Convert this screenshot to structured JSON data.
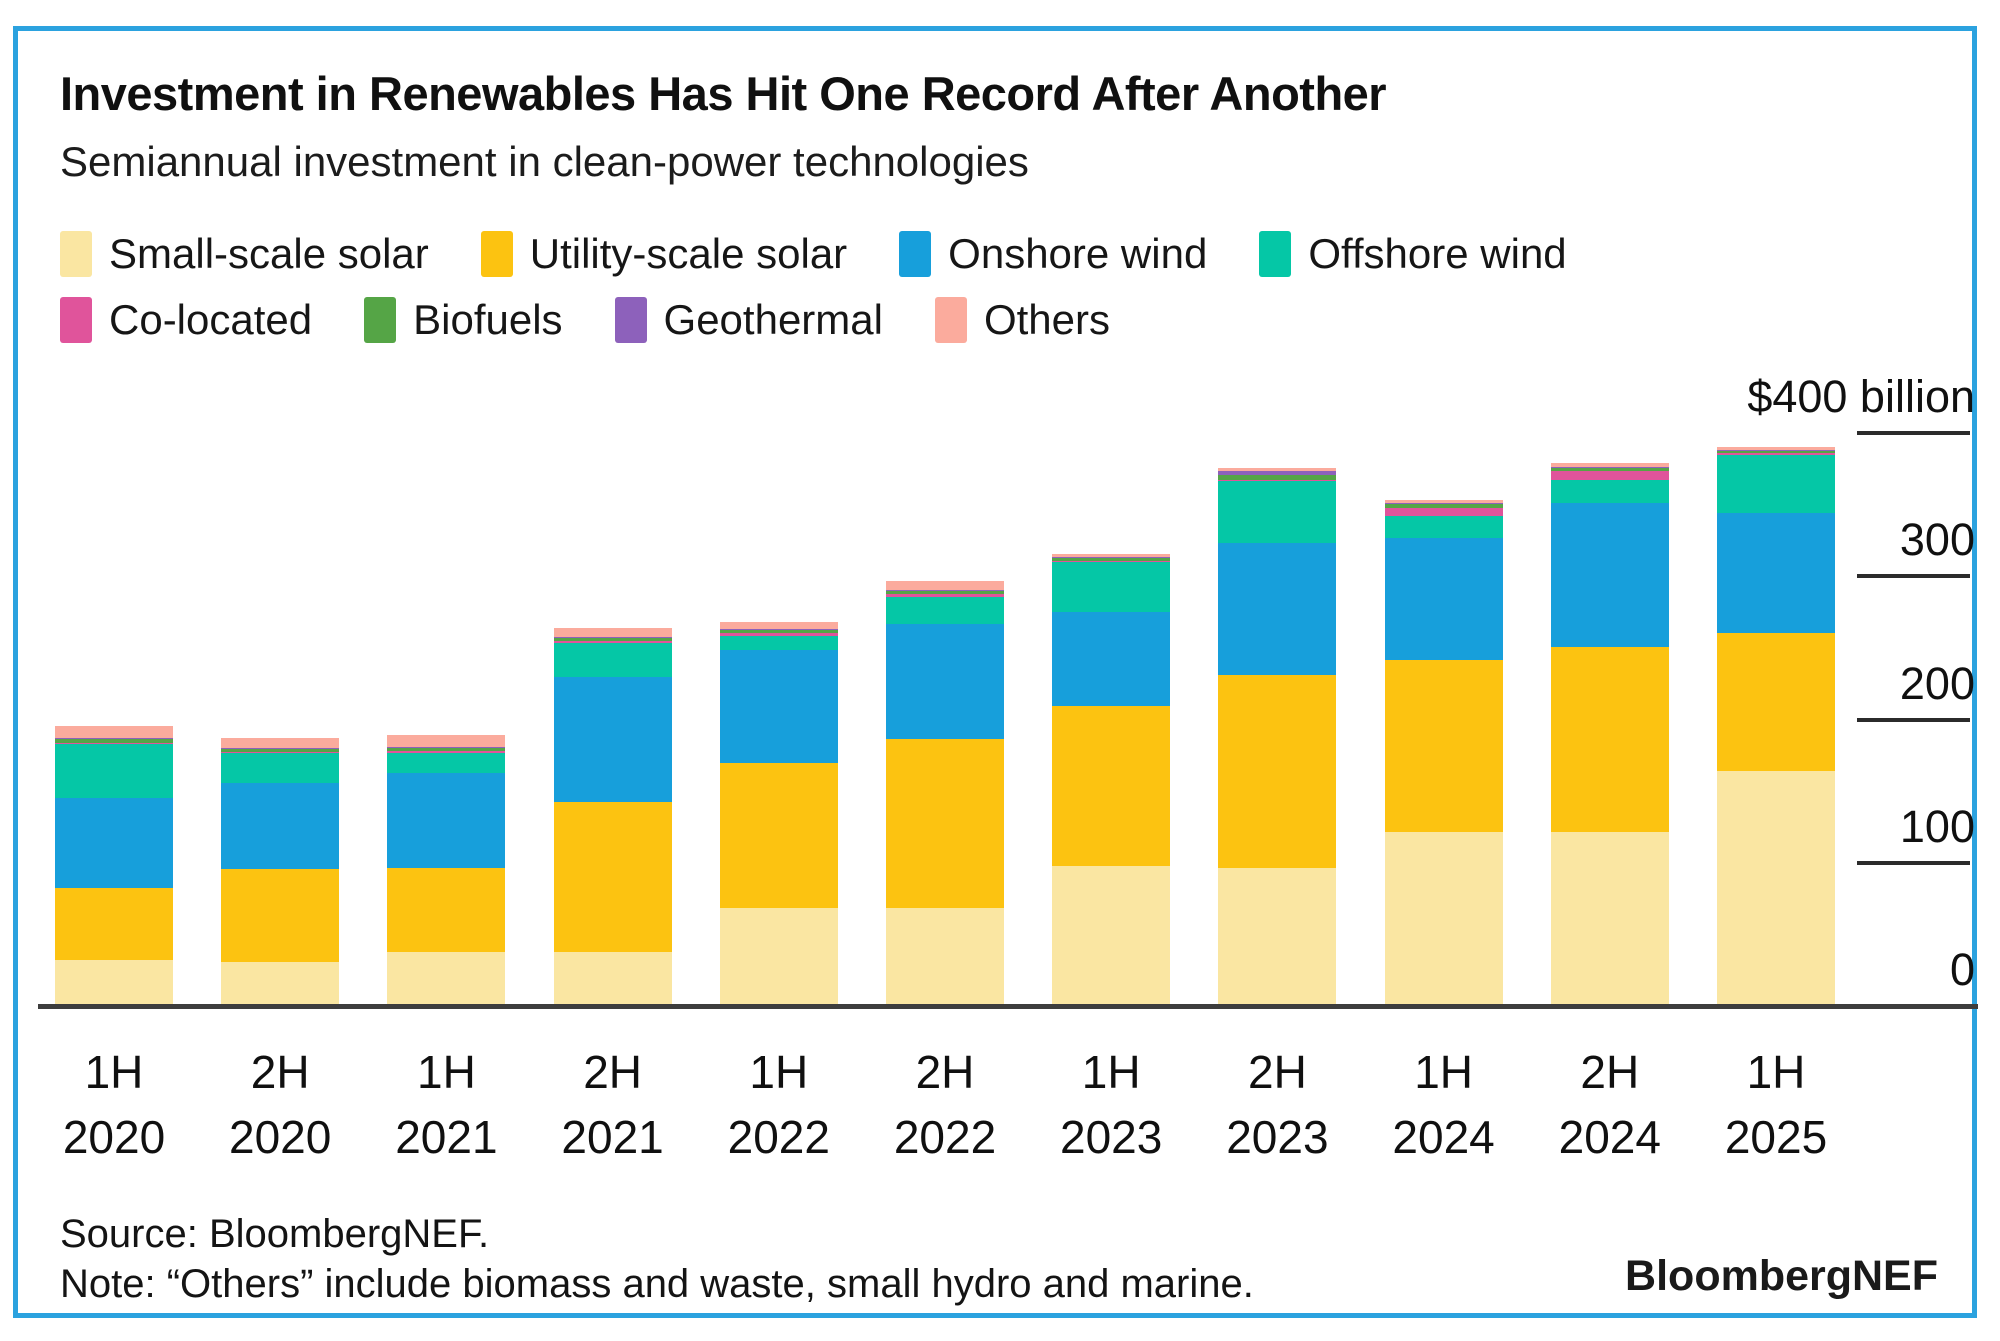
{
  "header": {
    "title": "Investment in Renewables Has Hit One Record After Another",
    "subtitle": "Semiannual investment in clean-power technologies"
  },
  "colors": {
    "small_scale_solar": "#fae6a2",
    "utility_scale_solar": "#fcc311",
    "onshore_wind": "#179fdb",
    "offshore_wind": "#05c7a6",
    "co_located": "#e0549b",
    "biofuels": "#55a546",
    "geothermal": "#8d61bb",
    "others": "#fbab9d",
    "frame_border": "#2ba2df",
    "axis": "#3d3d3d",
    "text": "#101010"
  },
  "chart_data": {
    "type": "bar",
    "stacked": true,
    "unit": "USD billion",
    "grid": false,
    "legend_position": "top",
    "ylim": [
      0,
      400
    ],
    "yticks": [
      {
        "value": 400,
        "label": "$400 billion"
      },
      {
        "value": 300,
        "label": "300"
      },
      {
        "value": 200,
        "label": "200"
      },
      {
        "value": 100,
        "label": "100"
      },
      {
        "value": 0,
        "label": "0"
      }
    ],
    "categories": [
      "1H 2020",
      "2H 2020",
      "1H 2021",
      "2H 2021",
      "1H 2022",
      "2H 2022",
      "1H 2023",
      "2H 2023",
      "1H 2024",
      "2H 2024",
      "1H 2025"
    ],
    "series": [
      {
        "name": "Small-scale solar",
        "color": "#fae6a2",
        "legend_row": 1,
        "values": [
          31,
          29,
          36,
          36,
          67,
          67,
          96,
          95,
          120,
          120,
          163
        ]
      },
      {
        "name": "Utility-scale solar",
        "color": "#fcc311",
        "legend_row": 1,
        "values": [
          50,
          65,
          59,
          105,
          101,
          118,
          112,
          135,
          120,
          129,
          96
        ]
      },
      {
        "name": "Onshore wind",
        "color": "#179fdb",
        "legend_row": 1,
        "values": [
          63,
          60,
          66,
          87,
          79,
          80,
          66,
          92,
          85,
          101,
          84
        ]
      },
      {
        "name": "Offshore wind",
        "color": "#05c7a6",
        "legend_row": 1,
        "values": [
          38,
          21,
          14,
          24,
          10,
          19,
          35,
          43,
          16,
          16,
          40
        ]
      },
      {
        "name": "Co-located",
        "color": "#e0549b",
        "legend_row": 2,
        "values": [
          0.5,
          1,
          1.5,
          1.5,
          2,
          2,
          0.5,
          1,
          5,
          6,
          1.5
        ]
      },
      {
        "name": "Biofuels",
        "color": "#55a546",
        "legend_row": 2,
        "values": [
          2.5,
          2,
          2.5,
          2.5,
          2.5,
          2.5,
          2,
          3,
          3,
          2.5,
          1.5
        ]
      },
      {
        "name": "Geothermal",
        "color": "#8d61bb",
        "legend_row": 2,
        "values": [
          0.5,
          0.5,
          0.5,
          0.5,
          0.5,
          0.5,
          0.5,
          3,
          0.5,
          0.5,
          1
        ]
      },
      {
        "name": "Others",
        "color": "#fbab9d",
        "legend_row": 2,
        "values": [
          8.5,
          7.5,
          8,
          6,
          5,
          6.5,
          2,
          2,
          2,
          2.5,
          1.5
        ]
      }
    ]
  },
  "footer": {
    "source_label": "Source: BloombergNEF.",
    "note_label": "Note: “Others” include biomass and waste, small hydro and marine.",
    "brand_label": "BloombergNEF"
  }
}
